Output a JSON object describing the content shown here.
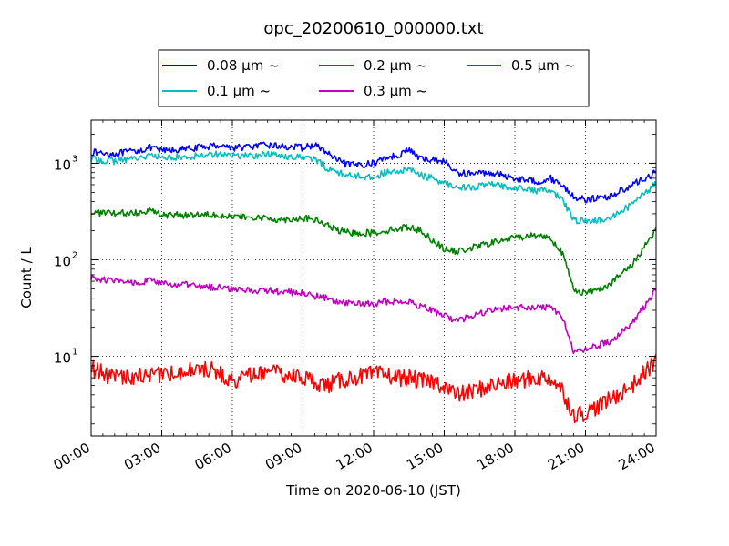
{
  "chart_data": {
    "type": "line",
    "title": "opc_20200610_000000.txt",
    "xlabel": "Time on 2020-06-10 (JST)",
    "ylabel": "Count / L",
    "y_scale": "log",
    "grid": true,
    "grid_style": "dotted",
    "legend_position": "top-center",
    "x_range": [
      "00:00",
      "24:00"
    ],
    "xticks": [
      "00:00",
      "03:00",
      "06:00",
      "09:00",
      "12:00",
      "15:00",
      "18:00",
      "21:00",
      "24:00"
    ],
    "yticks": [
      {
        "value": 10,
        "base": "10",
        "exp": "1"
      },
      {
        "value": 100,
        "base": "10",
        "exp": "2"
      },
      {
        "value": 1000,
        "base": "10",
        "exp": "3"
      }
    ],
    "ylim": [
      1.5,
      2800
    ],
    "x_hours": [
      0,
      1,
      2,
      2.5,
      3,
      4,
      5,
      5.5,
      6,
      7,
      7.5,
      8,
      9,
      9.5,
      10,
      10.5,
      11,
      12,
      12.5,
      13,
      13.5,
      14,
      14.5,
      15,
      15.5,
      16,
      17,
      18,
      19,
      19.5,
      20,
      20.5,
      21,
      22,
      23,
      24
    ],
    "series": [
      {
        "name": "0.08 μm ~",
        "color": "#0000ff",
        "values": [
          1300,
          1250,
          1350,
          1450,
          1350,
          1400,
          1500,
          1550,
          1450,
          1500,
          1550,
          1500,
          1450,
          1550,
          1300,
          1050,
          950,
          1000,
          1150,
          1200,
          1400,
          1100,
          1100,
          1050,
          800,
          780,
          800,
          700,
          650,
          700,
          600,
          450,
          420,
          450,
          600,
          800
        ]
      },
      {
        "name": "0.1 μm ~",
        "color": "#00bfbf",
        "values": [
          1100,
          1050,
          1150,
          1200,
          1150,
          1150,
          1250,
          1250,
          1200,
          1200,
          1250,
          1200,
          1150,
          1100,
          900,
          800,
          750,
          720,
          800,
          800,
          880,
          750,
          700,
          620,
          580,
          560,
          600,
          560,
          520,
          520,
          420,
          260,
          250,
          260,
          380,
          620
        ]
      },
      {
        "name": "0.2 μm ~",
        "color": "#008000",
        "values": [
          310,
          300,
          310,
          330,
          290,
          290,
          300,
          290,
          280,
          270,
          270,
          260,
          270,
          260,
          230,
          200,
          190,
          190,
          200,
          210,
          220,
          200,
          160,
          130,
          120,
          130,
          150,
          170,
          180,
          170,
          120,
          50,
          45,
          55,
          90,
          210
        ]
      },
      {
        "name": "0.3 μm ~",
        "color": "#bf00bf",
        "values": [
          65,
          60,
          58,
          62,
          56,
          55,
          52,
          52,
          50,
          48,
          48,
          47,
          45,
          42,
          40,
          36,
          35,
          35,
          37,
          37,
          37,
          33,
          30,
          26,
          24,
          25,
          30,
          32,
          32,
          33,
          26,
          11,
          12,
          14,
          22,
          50
        ]
      },
      {
        "name": "0.5 μm ~",
        "color": "#ff0000",
        "values": [
          7.5,
          6,
          6.2,
          6.5,
          6.5,
          7,
          7.5,
          6.5,
          5.5,
          6.5,
          7,
          6.5,
          6,
          5.5,
          5,
          5.5,
          6,
          6.5,
          6.5,
          6,
          6,
          5.5,
          5.5,
          5,
          4,
          4.2,
          5,
          5.5,
          6,
          6,
          4.5,
          2.5,
          2.6,
          3.5,
          5,
          9
        ]
      }
    ]
  }
}
